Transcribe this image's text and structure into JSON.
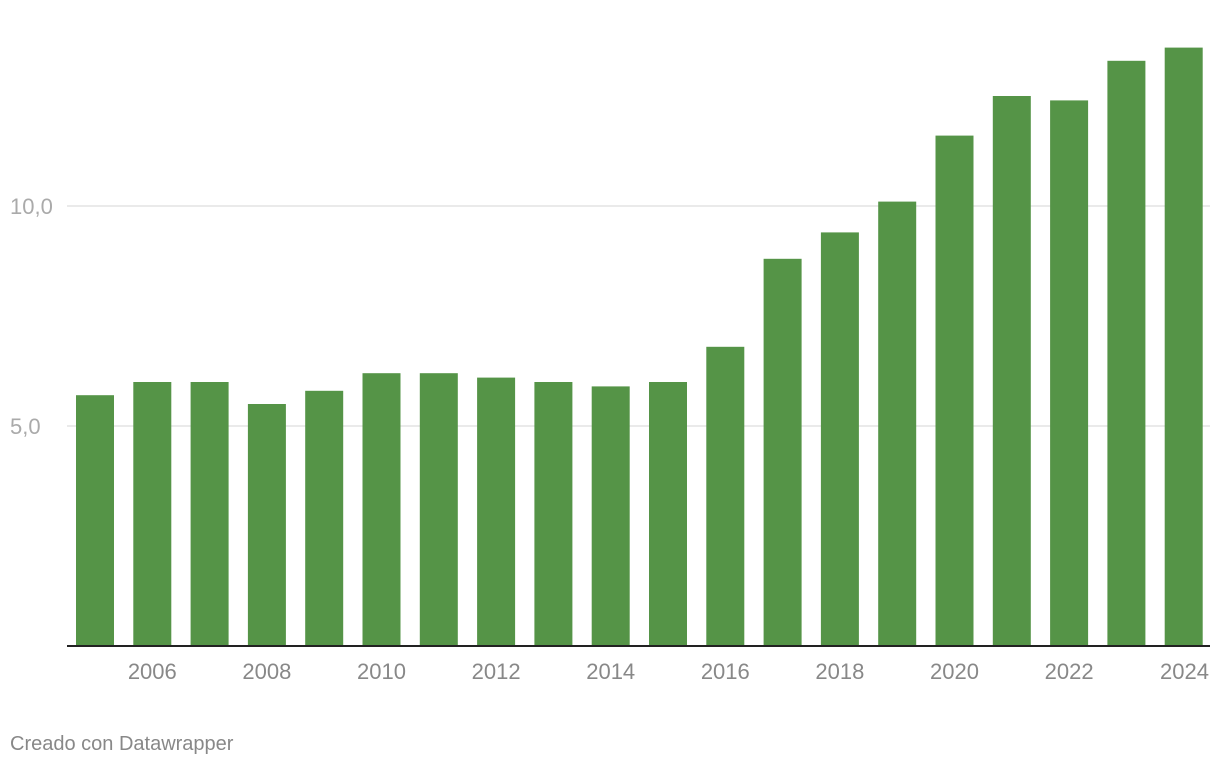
{
  "chart_data": {
    "type": "bar",
    "categories": [
      "2005",
      "2006",
      "2007",
      "2008",
      "2009",
      "2010",
      "2011",
      "2012",
      "2013",
      "2014",
      "2015",
      "2016",
      "2017",
      "2018",
      "2019",
      "2020",
      "2021",
      "2022",
      "2023",
      "2024"
    ],
    "values": [
      5.7,
      6.0,
      6.0,
      5.5,
      5.8,
      6.2,
      6.2,
      6.1,
      6.0,
      5.9,
      6.0,
      6.8,
      8.8,
      9.4,
      10.1,
      11.6,
      12.5,
      12.4,
      13.3,
      13.6
    ],
    "x_tick_labels": [
      "2006",
      "2008",
      "2010",
      "2012",
      "2014",
      "2016",
      "2018",
      "2020",
      "2022",
      "2024"
    ],
    "y_ticks": [
      5.0,
      10.0
    ],
    "y_tick_labels": [
      "5,0",
      "10,0"
    ],
    "ylim": [
      0,
      14
    ],
    "grid": true,
    "bar_color": "#559447",
    "title": "",
    "xlabel": "",
    "ylabel": ""
  },
  "footer": {
    "credit": "Creado con Datawrapper"
  }
}
